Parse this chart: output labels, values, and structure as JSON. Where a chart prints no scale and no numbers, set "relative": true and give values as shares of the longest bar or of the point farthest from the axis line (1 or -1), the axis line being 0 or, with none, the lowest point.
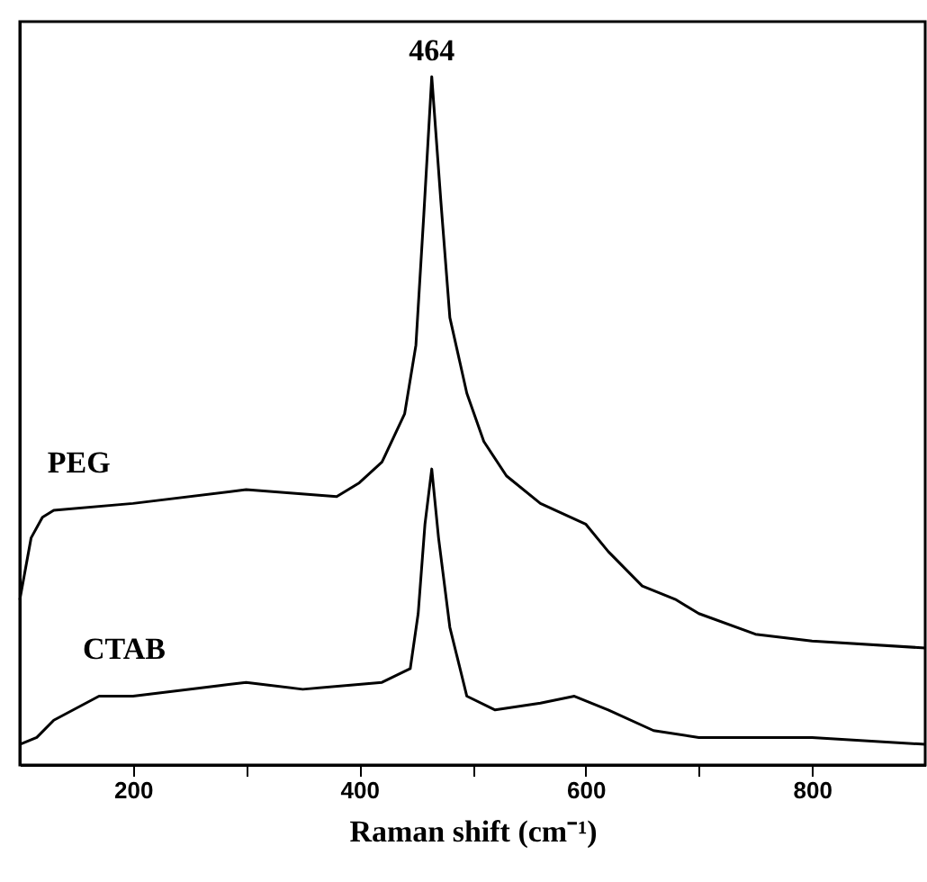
{
  "chart_data": {
    "type": "line",
    "xlabel": "Raman shift (cm⁻¹)",
    "relative": true,
    "xlim": [
      100,
      900
    ],
    "xticks": [
      200,
      {
        "value": 300,
        "label": null
      },
      400,
      {
        "value": 500,
        "label": null
      },
      600,
      {
        "value": 700,
        "label": null
      },
      800
    ],
    "annotations": [
      {
        "text": "464",
        "x": 464,
        "y": 1
      }
    ],
    "series": [
      {
        "name": "PEG",
        "color": "#000000",
        "x": [
          100,
          110,
          120,
          130,
          200,
          300,
          380,
          400,
          420,
          440,
          450,
          457,
          464,
          472,
          480,
          495,
          510,
          530,
          560,
          600,
          620,
          650,
          680,
          700,
          750,
          800,
          900
        ],
        "values": [
          0.24,
          0.33,
          0.36,
          0.37,
          0.38,
          0.4,
          0.39,
          0.41,
          0.44,
          0.51,
          0.61,
          0.8,
          1,
          0.82,
          0.65,
          0.54,
          0.47,
          0.42,
          0.38,
          0.35,
          0.31,
          0.26,
          0.24,
          0.22,
          0.19,
          0.18,
          0.17
        ]
      },
      {
        "name": "CTAB",
        "color": "#000000",
        "x": [
          100,
          115,
          130,
          170,
          200,
          300,
          350,
          420,
          445,
          452,
          458,
          464,
          470,
          480,
          495,
          520,
          560,
          590,
          620,
          660,
          700,
          800,
          900
        ],
        "values": [
          0.03,
          0.04,
          0.065,
          0.1,
          0.1,
          0.12,
          0.11,
          0.12,
          0.14,
          0.22,
          0.35,
          0.43,
          0.33,
          0.2,
          0.1,
          0.08,
          0.09,
          0.1,
          0.08,
          0.05,
          0.04,
          0.04,
          0.03
        ]
      }
    ]
  }
}
